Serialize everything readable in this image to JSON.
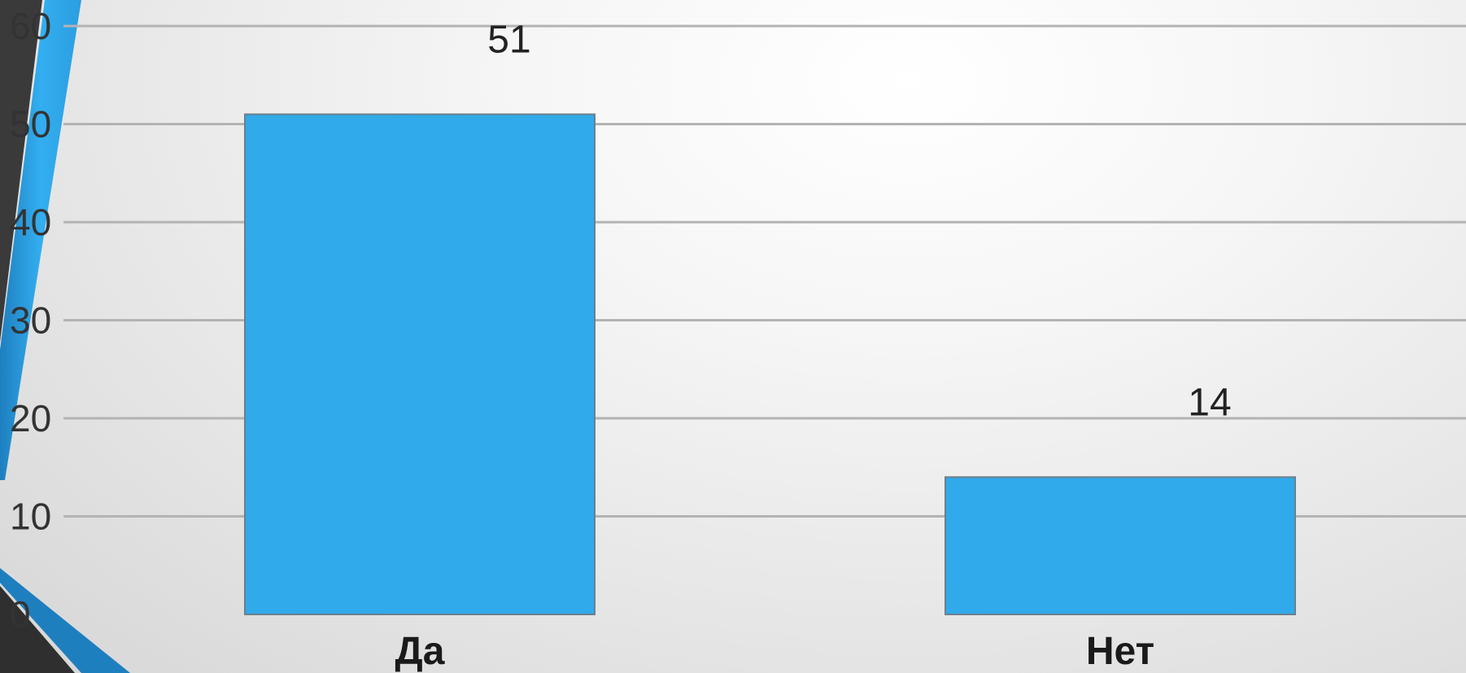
{
  "chart_data": {
    "type": "bar",
    "categories": [
      "Да",
      "Нет"
    ],
    "values": [
      51,
      14
    ],
    "data_labels": [
      "51",
      "14"
    ],
    "ylim": [
      0,
      60
    ],
    "yticks": [
      0,
      10,
      20,
      30,
      40,
      50,
      60
    ],
    "grid": true,
    "colors": {
      "bar": "#30aaea",
      "bar_edge": "#6b7f8c",
      "grid": "#b3b3b3"
    }
  },
  "decor": {
    "accent_color": "#2fa8e8",
    "accent_dark": "#1e7fbf",
    "corner_dark": "#3a3a3a"
  }
}
